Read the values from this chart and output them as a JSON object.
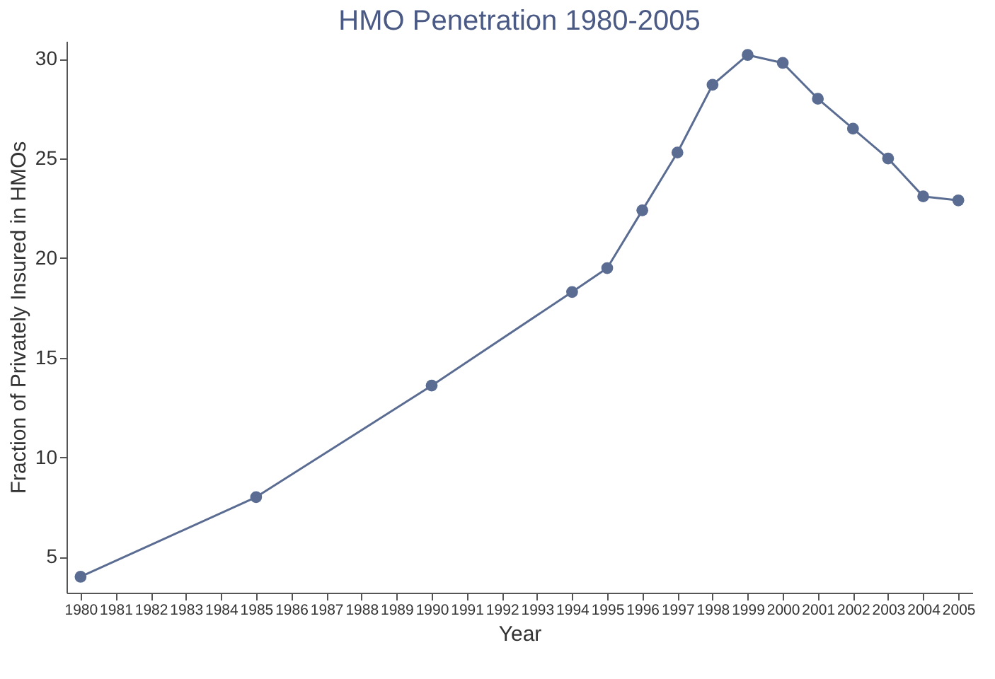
{
  "chart_data": {
    "type": "line",
    "title": "HMO Penetration 1980-2005",
    "xlabel": "Year",
    "ylabel": "Fraction of Privately Insured in HMOs",
    "x": [
      1980,
      1985,
      1990,
      1994,
      1995,
      1996,
      1997,
      1998,
      1999,
      2000,
      2001,
      2002,
      2003,
      2004,
      2005
    ],
    "series": [
      {
        "color": "#5a6c92",
        "values": [
          4.0,
          8.0,
          13.6,
          18.3,
          19.5,
          22.4,
          25.3,
          28.7,
          30.2,
          29.8,
          28.0,
          26.5,
          25.0,
          23.1,
          22.9
        ]
      }
    ],
    "xlim": [
      1979.6,
      2005.4
    ],
    "xticks": [
      1980,
      1981,
      1982,
      1983,
      1984,
      1985,
      1986,
      1987,
      1988,
      1989,
      1990,
      1991,
      1992,
      1993,
      1994,
      1995,
      1996,
      1997,
      1998,
      1999,
      2000,
      2001,
      2002,
      2003,
      2004,
      2005
    ],
    "ylim": [
      3.2,
      30.9
    ],
    "yticks": [
      5,
      10,
      15,
      20,
      25,
      30
    ],
    "grid": false,
    "marker": "circle",
    "line_style": "solid",
    "legend": false
  }
}
